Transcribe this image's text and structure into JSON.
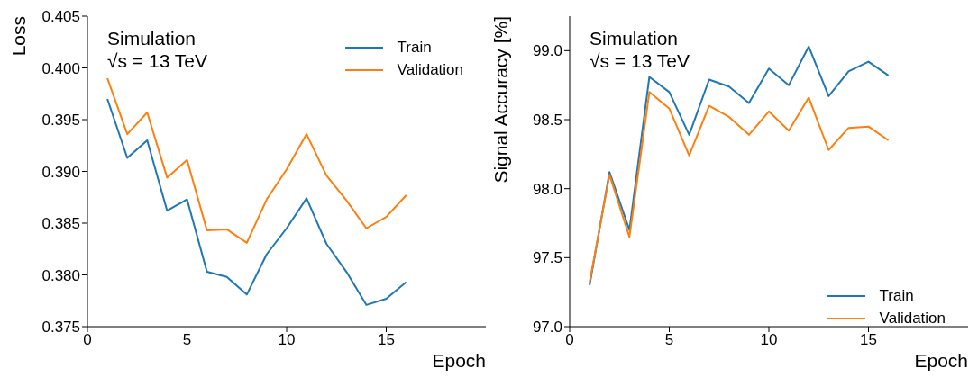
{
  "chart_data": [
    {
      "type": "line",
      "xlabel": "Epoch",
      "ylabel": "Loss",
      "annotations": [
        "Simulation",
        "√s = 13 TeV"
      ],
      "x": [
        1,
        2,
        3,
        4,
        5,
        6,
        7,
        8,
        9,
        10,
        11,
        12,
        13,
        14,
        15,
        16
      ],
      "series": [
        {
          "name": "Train",
          "color": "#1f77b4",
          "values": [
            0.397,
            0.3913,
            0.393,
            0.3862,
            0.3873,
            0.3803,
            0.3798,
            0.3781,
            0.382,
            0.3845,
            0.3874,
            0.383,
            0.3803,
            0.3771,
            0.3777,
            0.3793
          ]
        },
        {
          "name": "Validation",
          "color": "#ff7f0e",
          "values": [
            0.399,
            0.3936,
            0.3957,
            0.3894,
            0.3911,
            0.3843,
            0.3844,
            0.3831,
            0.3873,
            0.3902,
            0.3936,
            0.3896,
            0.3872,
            0.3845,
            0.3856,
            0.3877
          ]
        }
      ],
      "xlim": [
        0,
        20
      ],
      "xticks": [
        0,
        5,
        10,
        15
      ],
      "ylim": [
        0.375,
        0.405
      ],
      "yticks": [
        {
          "value": 0.375,
          "label": "0.375"
        },
        {
          "value": 0.38,
          "label": "0.380"
        },
        {
          "value": 0.385,
          "label": "0.385"
        },
        {
          "value": 0.39,
          "label": "0.390"
        },
        {
          "value": 0.395,
          "label": "0.395"
        },
        {
          "value": 0.4,
          "label": "0.400"
        },
        {
          "value": 0.405,
          "label": "0.405"
        }
      ],
      "legend": "top right",
      "line_style": "solid"
    },
    {
      "type": "line",
      "xlabel": "Epoch",
      "ylabel": "Signal Accuracy [%]",
      "annotations": [
        "Simulation",
        "√s = 13 TeV"
      ],
      "x": [
        1,
        2,
        3,
        4,
        5,
        6,
        7,
        8,
        9,
        10,
        11,
        12,
        13,
        14,
        15,
        16
      ],
      "series": [
        {
          "name": "Train",
          "color": "#1f77b4",
          "values": [
            97.3,
            98.12,
            97.7,
            98.81,
            98.7,
            98.39,
            98.79,
            98.74,
            98.62,
            98.87,
            98.75,
            99.03,
            98.67,
            98.85,
            98.92,
            98.82
          ]
        },
        {
          "name": "Validation",
          "color": "#ff7f0e",
          "values": [
            97.32,
            98.1,
            97.65,
            98.7,
            98.58,
            98.24,
            98.6,
            98.52,
            98.39,
            98.56,
            98.42,
            98.66,
            98.28,
            98.44,
            98.45,
            98.35
          ]
        }
      ],
      "xlim": [
        0,
        20
      ],
      "xticks": [
        0,
        5,
        10,
        15
      ],
      "ylim": [
        97.0,
        99.25
      ],
      "yticks": [
        {
          "value": 97,
          "label": "97.0"
        },
        {
          "value": 97.5,
          "label": "97.5"
        },
        {
          "value": 98,
          "label": "98.0"
        },
        {
          "value": 98.5,
          "label": "98.5"
        },
        {
          "value": 99,
          "label": "99.0"
        }
      ],
      "legend": "bottom right",
      "line_style": "solid"
    }
  ]
}
